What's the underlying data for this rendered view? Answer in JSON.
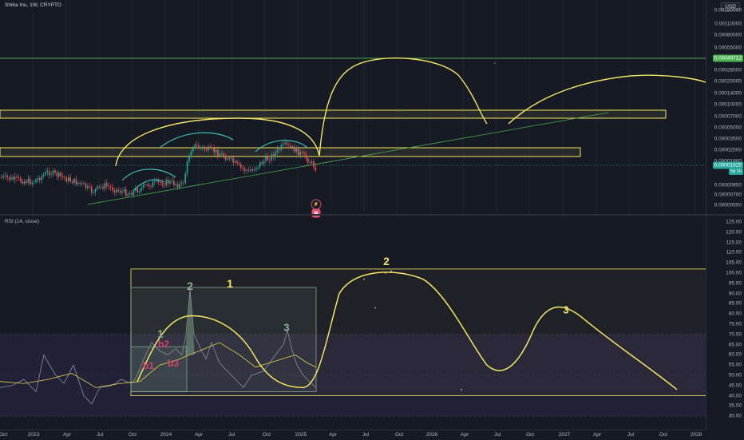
{
  "header": {
    "symbol": "Shiba Inu, 1W, CRYPTO",
    "currency": "USD"
  },
  "price_axis": {
    "ticks": [
      "0.00180000",
      "0.00110000",
      "0.00080000",
      "0.00055000",
      "0.00028000",
      "0.00020000",
      "0.00014000",
      "0.00010000",
      "0.00007000",
      "0.00005000",
      "0.00003500",
      "0.00002500",
      "0.00001800",
      "0.00000950",
      "0.00000700",
      "0.00000500"
    ],
    "upper_badge": "0.00049712",
    "current_badge": "0.00001525",
    "current_sub": "5d 1h"
  },
  "rsi": {
    "title": "RSI (14, close)",
    "ticks": [
      "125.00",
      "120.00",
      "115.00",
      "110.00",
      "105.00",
      "100.00",
      "95.00",
      "90.00",
      "85.00",
      "80.00",
      "75.00",
      "70.00",
      "65.00",
      "60.00",
      "55.00",
      "50.00",
      "45.00",
      "40.00",
      "35.00",
      "30.00"
    ],
    "labels": {
      "w1_box": "1",
      "w2_spike": "2",
      "w2_big": "2",
      "w3_big": "3",
      "w1_small": "1",
      "w3_small": "3",
      "b1": "b1",
      "b2": "b2",
      "b3": "b3"
    }
  },
  "time_axis": [
    "Oct",
    "2023",
    "Apr",
    "Jul",
    "Oct",
    "2024",
    "Apr",
    "Jul",
    "Oct",
    "2025",
    "Apr",
    "Jul",
    "Oct",
    "2026",
    "Apr",
    "Jul",
    "Oct",
    "2027",
    "Apr",
    "Jul",
    "Oct",
    "2028"
  ],
  "icons": {
    "flash": "⚡",
    "event": "▣"
  },
  "colors": {
    "bg": "#161a25",
    "up": "#26a69a",
    "down": "#ef5350",
    "yellow": "#f5e663",
    "teal": "#3fd1c0",
    "green_line": "#4caf50",
    "rsi_line": "#b8a9d9",
    "rsi_ma": "#e8d44d",
    "pink": "#d6446e",
    "gray_green": "#7fa98c"
  }
}
